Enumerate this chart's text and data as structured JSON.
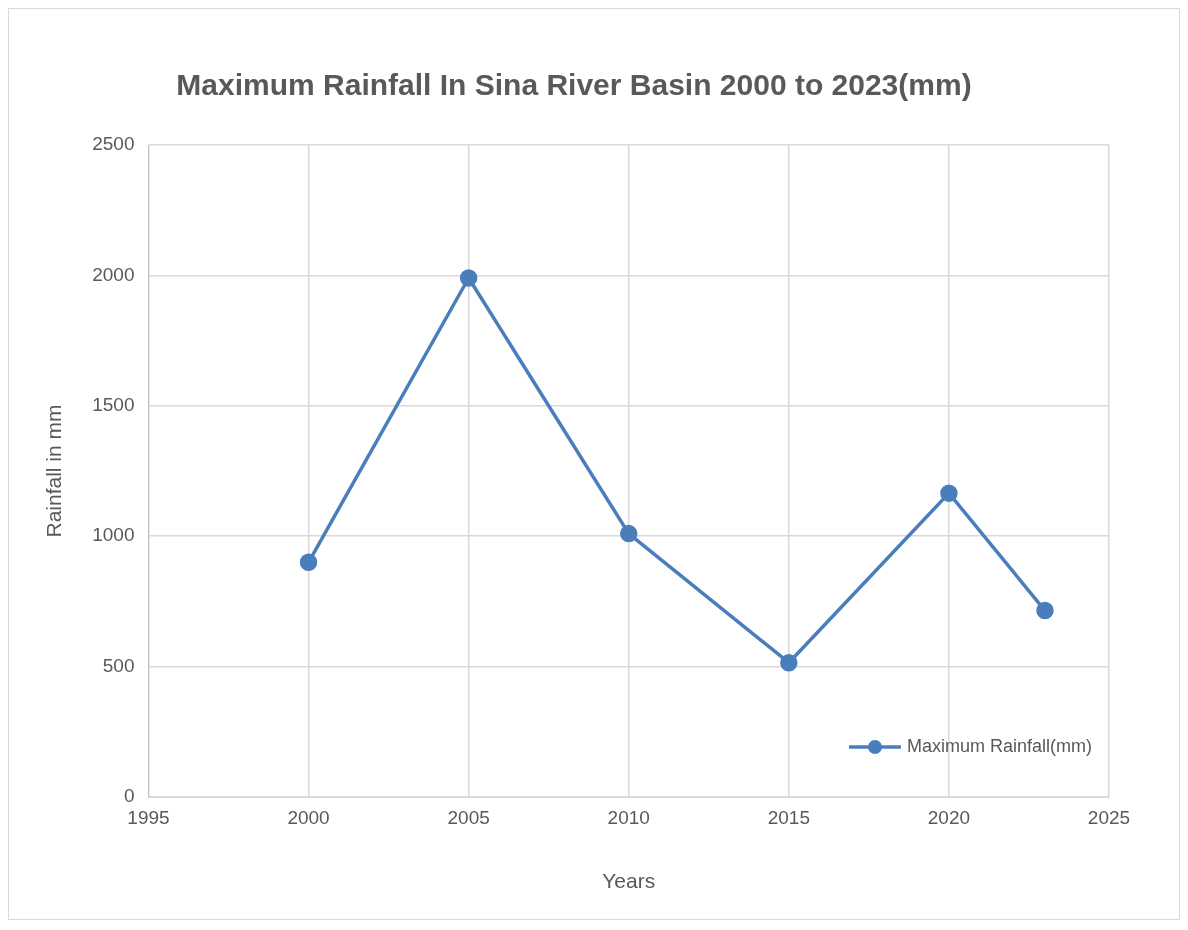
{
  "chart_data": {
    "type": "line",
    "title": "Maximum Rainfall In Sina River Basin 2000 to 2023(mm)",
    "xlabel": "Years",
    "ylabel": "Rainfall in mm",
    "x": [
      2000,
      2005,
      2010,
      2015,
      2020,
      2023
    ],
    "series": [
      {
        "name": "Maximum Rainfall(mm)",
        "color": "#4a7ebb",
        "values": [
          900,
          1990,
          1010,
          515,
          1165,
          715
        ]
      }
    ],
    "xlim": [
      1995,
      2025
    ],
    "xticks": [
      1995,
      2000,
      2005,
      2010,
      2015,
      2020,
      2025
    ],
    "ylim": [
      0,
      2500
    ],
    "yticks": [
      0,
      500,
      1000,
      1500,
      2000,
      2500
    ],
    "grid": true,
    "legend": "bottom right",
    "marker": "circle",
    "line_style": "solid"
  }
}
